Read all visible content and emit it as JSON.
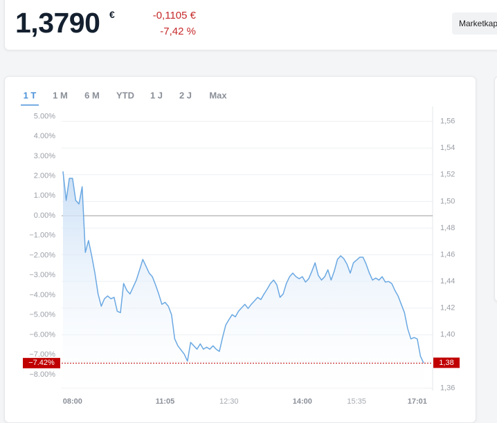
{
  "header": {
    "price": "1,3790",
    "currency": "€",
    "change": "-0,1105 €",
    "change_pct": "-7,42 %",
    "button": "Marketkap"
  },
  "tabs": [
    "1 T",
    "1 M",
    "6 M",
    "YTD",
    "1 J",
    "2 J",
    "Max"
  ],
  "active_tab": 0,
  "chart_data": {
    "type": "line",
    "categories": [
      null,
      null,
      null,
      "08:00",
      null,
      null,
      null,
      null,
      null,
      null,
      null,
      null,
      null,
      null,
      null,
      null,
      null,
      null,
      null,
      null,
      null,
      null,
      null,
      null,
      null,
      null,
      null,
      null,
      null,
      null,
      null,
      null,
      "11:05",
      null,
      null,
      null,
      null,
      null,
      null,
      null,
      null,
      null,
      null,
      null,
      null,
      null,
      null,
      null,
      null,
      null,
      null,
      null,
      "12:30",
      null,
      null,
      null,
      null,
      null,
      null,
      null,
      null,
      null,
      null,
      null,
      null,
      null,
      null,
      null,
      null,
      null,
      null,
      null,
      null,
      null,
      null,
      "14:00",
      null,
      null,
      null,
      null,
      null,
      null,
      null,
      null,
      null,
      null,
      null,
      null,
      null,
      null,
      null,
      null,
      "15:35",
      null,
      null,
      null,
      null,
      null,
      null,
      null,
      null,
      null,
      null,
      null,
      null,
      null,
      null,
      null,
      null,
      null,
      null,
      "17:01",
      null,
      null
    ],
    "major_ticks": [
      3,
      32,
      75,
      111
    ],
    "values": [
      2.23,
      0.77,
      1.88,
      1.88,
      0.77,
      0.59,
      1.46,
      -1.85,
      -1.25,
      -2.02,
      -2.89,
      -3.94,
      -4.56,
      -4.18,
      -4.04,
      -4.18,
      -4.11,
      -4.81,
      -4.88,
      -3.41,
      -3.76,
      -3.94,
      -3.59,
      -3.24,
      -2.72,
      -2.2,
      -2.54,
      -2.89,
      -3.07,
      -3.48,
      -3.94,
      -4.46,
      -4.36,
      -4.56,
      -4.98,
      -6.2,
      -6.55,
      -6.76,
      -6.97,
      -7.32,
      -6.38,
      -6.55,
      -6.72,
      -6.45,
      -6.72,
      -6.62,
      -6.72,
      -6.55,
      -6.72,
      -6.83,
      -6.13,
      -5.51,
      -5.23,
      -4.98,
      -5.09,
      -4.81,
      -4.63,
      -4.46,
      -4.67,
      -4.46,
      -4.29,
      -4.11,
      -4.22,
      -3.94,
      -3.69,
      -3.41,
      -3.24,
      -3.48,
      -4.11,
      -3.94,
      -3.41,
      -3.07,
      -2.89,
      -3.07,
      -3.17,
      -3.07,
      -3.34,
      -3.17,
      -2.79,
      -2.37,
      -3.0,
      -3.24,
      -3.07,
      -2.72,
      -3.24,
      -2.79,
      -2.2,
      -2.02,
      -2.16,
      -2.44,
      -2.89,
      -2.37,
      -2.23,
      -2.09,
      -2.09,
      -2.44,
      -2.89,
      -3.24,
      -3.14,
      -3.24,
      -3.07,
      -3.34,
      -3.31,
      -3.41,
      -3.76,
      -4.04,
      -4.46,
      -4.88,
      -5.68,
      -6.2,
      -6.13,
      -6.2,
      -7.07,
      -7.42
    ],
    "color": "#6aa8e2",
    "ylim": [
      -8.8,
      5.5
    ],
    "yticks": [
      {
        "value": 5,
        "label": "5.00%"
      },
      {
        "value": 4,
        "label": "4.00%"
      },
      {
        "value": 3,
        "label": "3.00%"
      },
      {
        "value": 2,
        "label": "2.00%"
      },
      {
        "value": 1,
        "label": "1.00%"
      },
      {
        "value": 0,
        "label": "0.00%"
      },
      {
        "value": -1,
        "label": "−1.00%"
      },
      {
        "value": -2,
        "label": "−2.00%"
      },
      {
        "value": -3,
        "label": "−3.00%"
      },
      {
        "value": -4,
        "label": "−4.00%"
      },
      {
        "value": -5,
        "label": "−5.00%"
      },
      {
        "value": -6,
        "label": "−6.00%"
      },
      {
        "value": -7,
        "label": "−7.00%"
      },
      {
        "value": -8,
        "label": "−8.00%"
      }
    ],
    "y2lim": [
      1.3582,
      1.5712
    ],
    "y2ticks": [
      {
        "value": 1.56,
        "label": "1,56"
      },
      {
        "value": 1.54,
        "label": "1,54"
      },
      {
        "value": 1.52,
        "label": "1,52"
      },
      {
        "value": 1.5,
        "label": "1,50"
      },
      {
        "value": 1.48,
        "label": "1,48"
      },
      {
        "value": 1.46,
        "label": "1,46"
      },
      {
        "value": 1.44,
        "label": "1,44"
      },
      {
        "value": 1.42,
        "label": "1,42"
      },
      {
        "value": 1.4,
        "label": "1,40"
      },
      {
        "value": 1.38,
        "label": "1,38"
      },
      {
        "value": 1.36,
        "label": "1,36"
      }
    ],
    "grid": true,
    "zero_line": true,
    "current": {
      "value": -7.42,
      "label": "−7.42%",
      "y2_value": 1.379,
      "y2_label": "1,38"
    }
  }
}
